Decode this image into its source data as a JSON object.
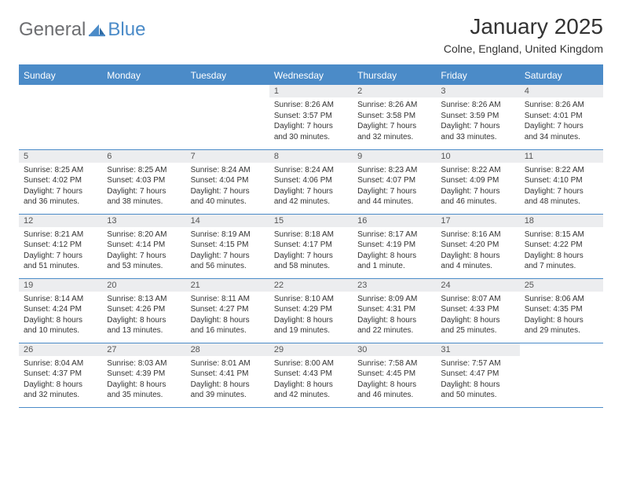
{
  "brand": {
    "word1": "General",
    "word2": "Blue"
  },
  "title": "January 2025",
  "location": "Colne, England, United Kingdom",
  "colors": {
    "accent": "#4b8bc8",
    "header_bg": "#4b8bc8",
    "daynum_bg": "#ecedef",
    "text": "#333333"
  },
  "day_names": [
    "Sunday",
    "Monday",
    "Tuesday",
    "Wednesday",
    "Thursday",
    "Friday",
    "Saturday"
  ],
  "first_weekday_index": 3,
  "days": [
    {
      "n": 1,
      "sunrise": "8:26 AM",
      "sunset": "3:57 PM",
      "daylight": "7 hours and 30 minutes."
    },
    {
      "n": 2,
      "sunrise": "8:26 AM",
      "sunset": "3:58 PM",
      "daylight": "7 hours and 32 minutes."
    },
    {
      "n": 3,
      "sunrise": "8:26 AM",
      "sunset": "3:59 PM",
      "daylight": "7 hours and 33 minutes."
    },
    {
      "n": 4,
      "sunrise": "8:26 AM",
      "sunset": "4:01 PM",
      "daylight": "7 hours and 34 minutes."
    },
    {
      "n": 5,
      "sunrise": "8:25 AM",
      "sunset": "4:02 PM",
      "daylight": "7 hours and 36 minutes."
    },
    {
      "n": 6,
      "sunrise": "8:25 AM",
      "sunset": "4:03 PM",
      "daylight": "7 hours and 38 minutes."
    },
    {
      "n": 7,
      "sunrise": "8:24 AM",
      "sunset": "4:04 PM",
      "daylight": "7 hours and 40 minutes."
    },
    {
      "n": 8,
      "sunrise": "8:24 AM",
      "sunset": "4:06 PM",
      "daylight": "7 hours and 42 minutes."
    },
    {
      "n": 9,
      "sunrise": "8:23 AM",
      "sunset": "4:07 PM",
      "daylight": "7 hours and 44 minutes."
    },
    {
      "n": 10,
      "sunrise": "8:22 AM",
      "sunset": "4:09 PM",
      "daylight": "7 hours and 46 minutes."
    },
    {
      "n": 11,
      "sunrise": "8:22 AM",
      "sunset": "4:10 PM",
      "daylight": "7 hours and 48 minutes."
    },
    {
      "n": 12,
      "sunrise": "8:21 AM",
      "sunset": "4:12 PM",
      "daylight": "7 hours and 51 minutes."
    },
    {
      "n": 13,
      "sunrise": "8:20 AM",
      "sunset": "4:14 PM",
      "daylight": "7 hours and 53 minutes."
    },
    {
      "n": 14,
      "sunrise": "8:19 AM",
      "sunset": "4:15 PM",
      "daylight": "7 hours and 56 minutes."
    },
    {
      "n": 15,
      "sunrise": "8:18 AM",
      "sunset": "4:17 PM",
      "daylight": "7 hours and 58 minutes."
    },
    {
      "n": 16,
      "sunrise": "8:17 AM",
      "sunset": "4:19 PM",
      "daylight": "8 hours and 1 minute."
    },
    {
      "n": 17,
      "sunrise": "8:16 AM",
      "sunset": "4:20 PM",
      "daylight": "8 hours and 4 minutes."
    },
    {
      "n": 18,
      "sunrise": "8:15 AM",
      "sunset": "4:22 PM",
      "daylight": "8 hours and 7 minutes."
    },
    {
      "n": 19,
      "sunrise": "8:14 AM",
      "sunset": "4:24 PM",
      "daylight": "8 hours and 10 minutes."
    },
    {
      "n": 20,
      "sunrise": "8:13 AM",
      "sunset": "4:26 PM",
      "daylight": "8 hours and 13 minutes."
    },
    {
      "n": 21,
      "sunrise": "8:11 AM",
      "sunset": "4:27 PM",
      "daylight": "8 hours and 16 minutes."
    },
    {
      "n": 22,
      "sunrise": "8:10 AM",
      "sunset": "4:29 PM",
      "daylight": "8 hours and 19 minutes."
    },
    {
      "n": 23,
      "sunrise": "8:09 AM",
      "sunset": "4:31 PM",
      "daylight": "8 hours and 22 minutes."
    },
    {
      "n": 24,
      "sunrise": "8:07 AM",
      "sunset": "4:33 PM",
      "daylight": "8 hours and 25 minutes."
    },
    {
      "n": 25,
      "sunrise": "8:06 AM",
      "sunset": "4:35 PM",
      "daylight": "8 hours and 29 minutes."
    },
    {
      "n": 26,
      "sunrise": "8:04 AM",
      "sunset": "4:37 PM",
      "daylight": "8 hours and 32 minutes."
    },
    {
      "n": 27,
      "sunrise": "8:03 AM",
      "sunset": "4:39 PM",
      "daylight": "8 hours and 35 minutes."
    },
    {
      "n": 28,
      "sunrise": "8:01 AM",
      "sunset": "4:41 PM",
      "daylight": "8 hours and 39 minutes."
    },
    {
      "n": 29,
      "sunrise": "8:00 AM",
      "sunset": "4:43 PM",
      "daylight": "8 hours and 42 minutes."
    },
    {
      "n": 30,
      "sunrise": "7:58 AM",
      "sunset": "4:45 PM",
      "daylight": "8 hours and 46 minutes."
    },
    {
      "n": 31,
      "sunrise": "7:57 AM",
      "sunset": "4:47 PM",
      "daylight": "8 hours and 50 minutes."
    }
  ],
  "labels": {
    "sunrise": "Sunrise:",
    "sunset": "Sunset:",
    "daylight": "Daylight:"
  }
}
